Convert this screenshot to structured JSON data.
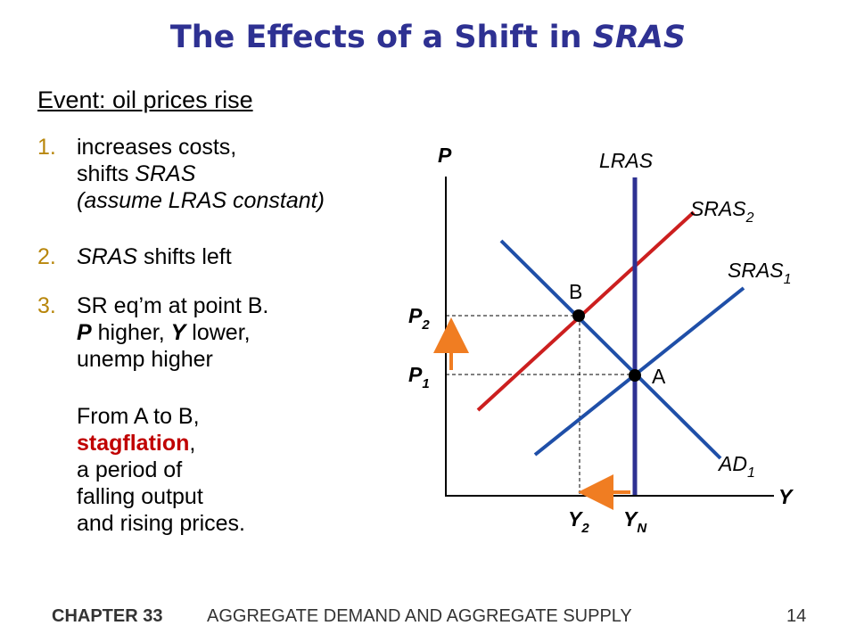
{
  "slide": {
    "title_prefix": "The Effects of a Shift in ",
    "title_italic": "SRAS",
    "event": "Event:  oil prices rise",
    "items": [
      {
        "num": "1.",
        "line1": "increases costs,",
        "line2_a": "shifts ",
        "line2_i": "SRAS",
        "line3": "(assume LRAS constant)"
      },
      {
        "num": "2.",
        "a_i": "SRAS",
        "a_rest": " shifts left"
      },
      {
        "num": "3.",
        "line1": "SR eq’m at point B.",
        "line2_b1": "P",
        "line2_t1": " higher, ",
        "line2_b2": "Y",
        "line2_t2": "  lower,",
        "line3": "unemp higher"
      }
    ],
    "conclusion": {
      "line1": "From A to B,",
      "highlight": "stagflation",
      "comma": ",",
      "line3": "a period of",
      "line4": "falling output",
      "line5": "and rising prices."
    }
  },
  "diagram": {
    "axis_y": "P",
    "axis_x": "Y",
    "curves": {
      "lras": "LRAS",
      "sras2": "SRAS",
      "sras2_sub": "2",
      "sras1": "SRAS",
      "sras1_sub": "1",
      "ad1": "AD",
      "ad1_sub": "1"
    },
    "points": {
      "a": "A",
      "b": "B"
    },
    "price_labels": {
      "p2": "P",
      "p2_sub": "2",
      "p1": "P",
      "p1_sub": "1"
    },
    "output_labels": {
      "y2": "Y",
      "y2_sub": "2",
      "yn": "Y",
      "yn_sub": "N"
    },
    "colors": {
      "lras": "#2e3192",
      "sras1": "#1f4fa8",
      "sras2": "#cc1f1f",
      "ad": "#1f4fa8",
      "arrow": "#f07d22"
    }
  },
  "footer": {
    "chapter": "CHAPTER 33",
    "topic": "AGGREGATE DEMAND AND AGGREGATE SUPPLY",
    "page": "14"
  }
}
